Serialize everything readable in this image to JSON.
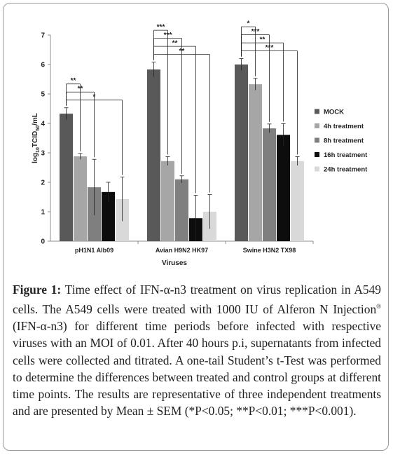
{
  "chart_data": {
    "type": "bar",
    "categories": [
      "pH1N1 Alb09",
      "Avian H9N2 HK97",
      "Swine H3N2 TX98"
    ],
    "series": [
      {
        "name": "MOCK",
        "color": "#595959",
        "values": [
          4.33,
          5.83,
          6.0
        ],
        "errors": [
          0.2,
          0.25,
          0.2
        ]
      },
      {
        "name": "4h treatment",
        "color": "#a6a6a6",
        "values": [
          2.88,
          2.72,
          5.33
        ],
        "errors": [
          0.1,
          0.15,
          0.2
        ]
      },
      {
        "name": "8h treatment",
        "color": "#7f7f7f",
        "values": [
          1.83,
          2.1,
          3.83
        ],
        "errors": [
          0.95,
          0.12,
          0.15
        ]
      },
      {
        "name": "16h treatment",
        "color": "#0d0d0d",
        "values": [
          1.67,
          0.78,
          3.61
        ],
        "errors": [
          0.33,
          0.78,
          0.38
        ]
      },
      {
        "name": "24h treatment",
        "color": "#d9d9d9",
        "values": [
          1.43,
          1.0,
          2.72
        ],
        "errors": [
          0.75,
          0.58,
          0.15
        ]
      }
    ],
    "ylim": [
      0,
      7
    ],
    "yticks": [
      "0",
      "1",
      "2",
      "3",
      "4",
      "5",
      "6",
      "7"
    ],
    "ylabel_parts": [
      "log",
      "10",
      "TCID",
      "50",
      "/mL"
    ],
    "xlabel": "Viruses",
    "legend_position": "right",
    "grid": false,
    "significance": [
      {
        "group": 0,
        "target_series": 1,
        "label": "**"
      },
      {
        "group": 0,
        "target_series": 2,
        "label": "**"
      },
      {
        "group": 0,
        "target_series": 4,
        "label": "*"
      },
      {
        "group": 1,
        "target_series": 1,
        "label": "***"
      },
      {
        "group": 1,
        "target_series": 2,
        "label": "***"
      },
      {
        "group": 1,
        "target_series": 3,
        "label": "**"
      },
      {
        "group": 1,
        "target_series": 4,
        "label": "**"
      },
      {
        "group": 2,
        "target_series": 1,
        "label": "*"
      },
      {
        "group": 2,
        "target_series": 2,
        "label": "***"
      },
      {
        "group": 2,
        "target_series": 3,
        "label": "**"
      },
      {
        "group": 2,
        "target_series": 4,
        "label": "***"
      }
    ]
  },
  "caption": {
    "label": "Figure 1:",
    "text_before_sup": " Time effect of IFN-α-n3 treatment on virus replication in A549 cells. The A549 cells were treated with 1000 IU of Alferon N Injection",
    "sup": "®",
    "text_after_sup": " (IFN-α-n3) for different time periods before infected with respective viruses with an MOI of 0.01. After 40 hours p.i, supernatants from infected cells were collected and titrated. A one-tail Student’s t-Test was performed to determine the differences between treated and control groups at different time points. The results are representative of three independent treatments and are presented by Mean ± SEM (*P<0.05; **P<0.01; ***P<0.001)."
  }
}
